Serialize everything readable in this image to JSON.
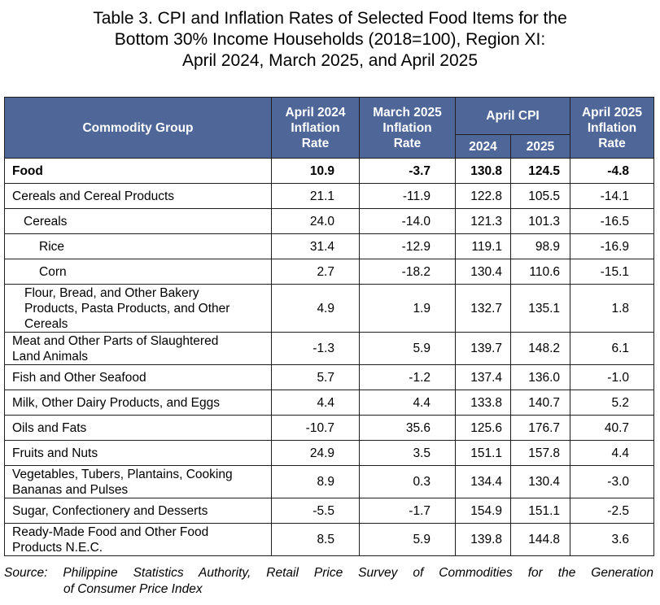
{
  "title": {
    "line1": "Table 3. CPI and Inflation Rates of Selected Food Items for the",
    "line2": "Bottom 30% Income Households (2018=100), Region XI:",
    "line3": "April 2024, March 2025, and April 2025"
  },
  "headers": {
    "commodity": "Commodity Group",
    "apr2024_line1": "April 2024",
    "apr2024_line2": "Inflation",
    "apr2024_line3": "Rate",
    "mar2025_line1": "March 2025",
    "mar2025_line2": "Inflation",
    "mar2025_line3": "Rate",
    "april_cpi": "April CPI",
    "cpi_2024": "2024",
    "cpi_2025": "2025",
    "apr2025_line1": "April 2025",
    "apr2025_line2": "Inflation",
    "apr2025_line3": "Rate"
  },
  "rows": [
    {
      "label": "Food",
      "apr2024": "10.9",
      "mar2025": "-3.7",
      "cpi2024": "130.8",
      "cpi2025": "124.5",
      "apr2025": "-4.8"
    },
    {
      "label": "Cereals and Cereal Products",
      "apr2024": "21.1",
      "mar2025": "-11.9",
      "cpi2024": "122.8",
      "cpi2025": "105.5",
      "apr2025": "-14.1"
    },
    {
      "label": "Cereals",
      "apr2024": "24.0",
      "mar2025": "-14.0",
      "cpi2024": "121.3",
      "cpi2025": "101.3",
      "apr2025": "-16.5"
    },
    {
      "label": "Rice",
      "apr2024": "31.4",
      "mar2025": "-12.9",
      "cpi2024": "119.1",
      "cpi2025": "98.9",
      "apr2025": "-16.9"
    },
    {
      "label": "Corn",
      "apr2024": "2.7",
      "mar2025": "-18.2",
      "cpi2024": "130.4",
      "cpi2025": "110.6",
      "apr2025": "-15.1"
    },
    {
      "label_line1": "Flour, Bread, and Other Bakery",
      "label_line2": "Products, Pasta Products, and Other",
      "label_line3": "Cereals",
      "apr2024": "4.9",
      "mar2025": "1.9",
      "cpi2024": "132.7",
      "cpi2025": "135.1",
      "apr2025": "1.8"
    },
    {
      "label_line1": "Meat and Other Parts of Slaughtered",
      "label_line2": "Land Animals",
      "apr2024": "-1.3",
      "mar2025": "5.9",
      "cpi2024": "139.7",
      "cpi2025": "148.2",
      "apr2025": "6.1"
    },
    {
      "label": "Fish and Other Seafood",
      "apr2024": "5.7",
      "mar2025": "-1.2",
      "cpi2024": "137.4",
      "cpi2025": "136.0",
      "apr2025": "-1.0"
    },
    {
      "label": "Milk, Other Dairy Products, and Eggs",
      "apr2024": "4.4",
      "mar2025": "4.4",
      "cpi2024": "133.8",
      "cpi2025": "140.7",
      "apr2025": "5.2"
    },
    {
      "label": "Oils and Fats",
      "apr2024": "-10.7",
      "mar2025": "35.6",
      "cpi2024": "125.6",
      "cpi2025": "176.7",
      "apr2025": "40.7"
    },
    {
      "label": "Fruits and Nuts",
      "apr2024": "24.9",
      "mar2025": "3.5",
      "cpi2024": "151.1",
      "cpi2025": "157.8",
      "apr2025": "4.4"
    },
    {
      "label_line1": "Vegetables, Tubers, Plantains, Cooking",
      "label_line2": "Bananas and Pulses",
      "apr2024": "8.9",
      "mar2025": "0.3",
      "cpi2024": "134.4",
      "cpi2025": "130.4",
      "apr2025": "-3.0"
    },
    {
      "label": "Sugar, Confectionery and Desserts",
      "apr2024": "-5.5",
      "mar2025": "-1.7",
      "cpi2024": "154.9",
      "cpi2025": "151.1",
      "apr2025": "-2.5"
    },
    {
      "label_line1": "Ready-Made Food and Other Food",
      "label_line2": "Products N.E.C.",
      "apr2024": "8.5",
      "mar2025": "5.9",
      "cpi2024": "139.8",
      "cpi2025": "144.8",
      "apr2025": "3.6"
    }
  ],
  "source": {
    "line1": "Source:  Philippine  Statistics  Authority,  Retail  Price  Survey  of  Commodities  for  the  Generation",
    "line2": "of Consumer Price Index"
  }
}
